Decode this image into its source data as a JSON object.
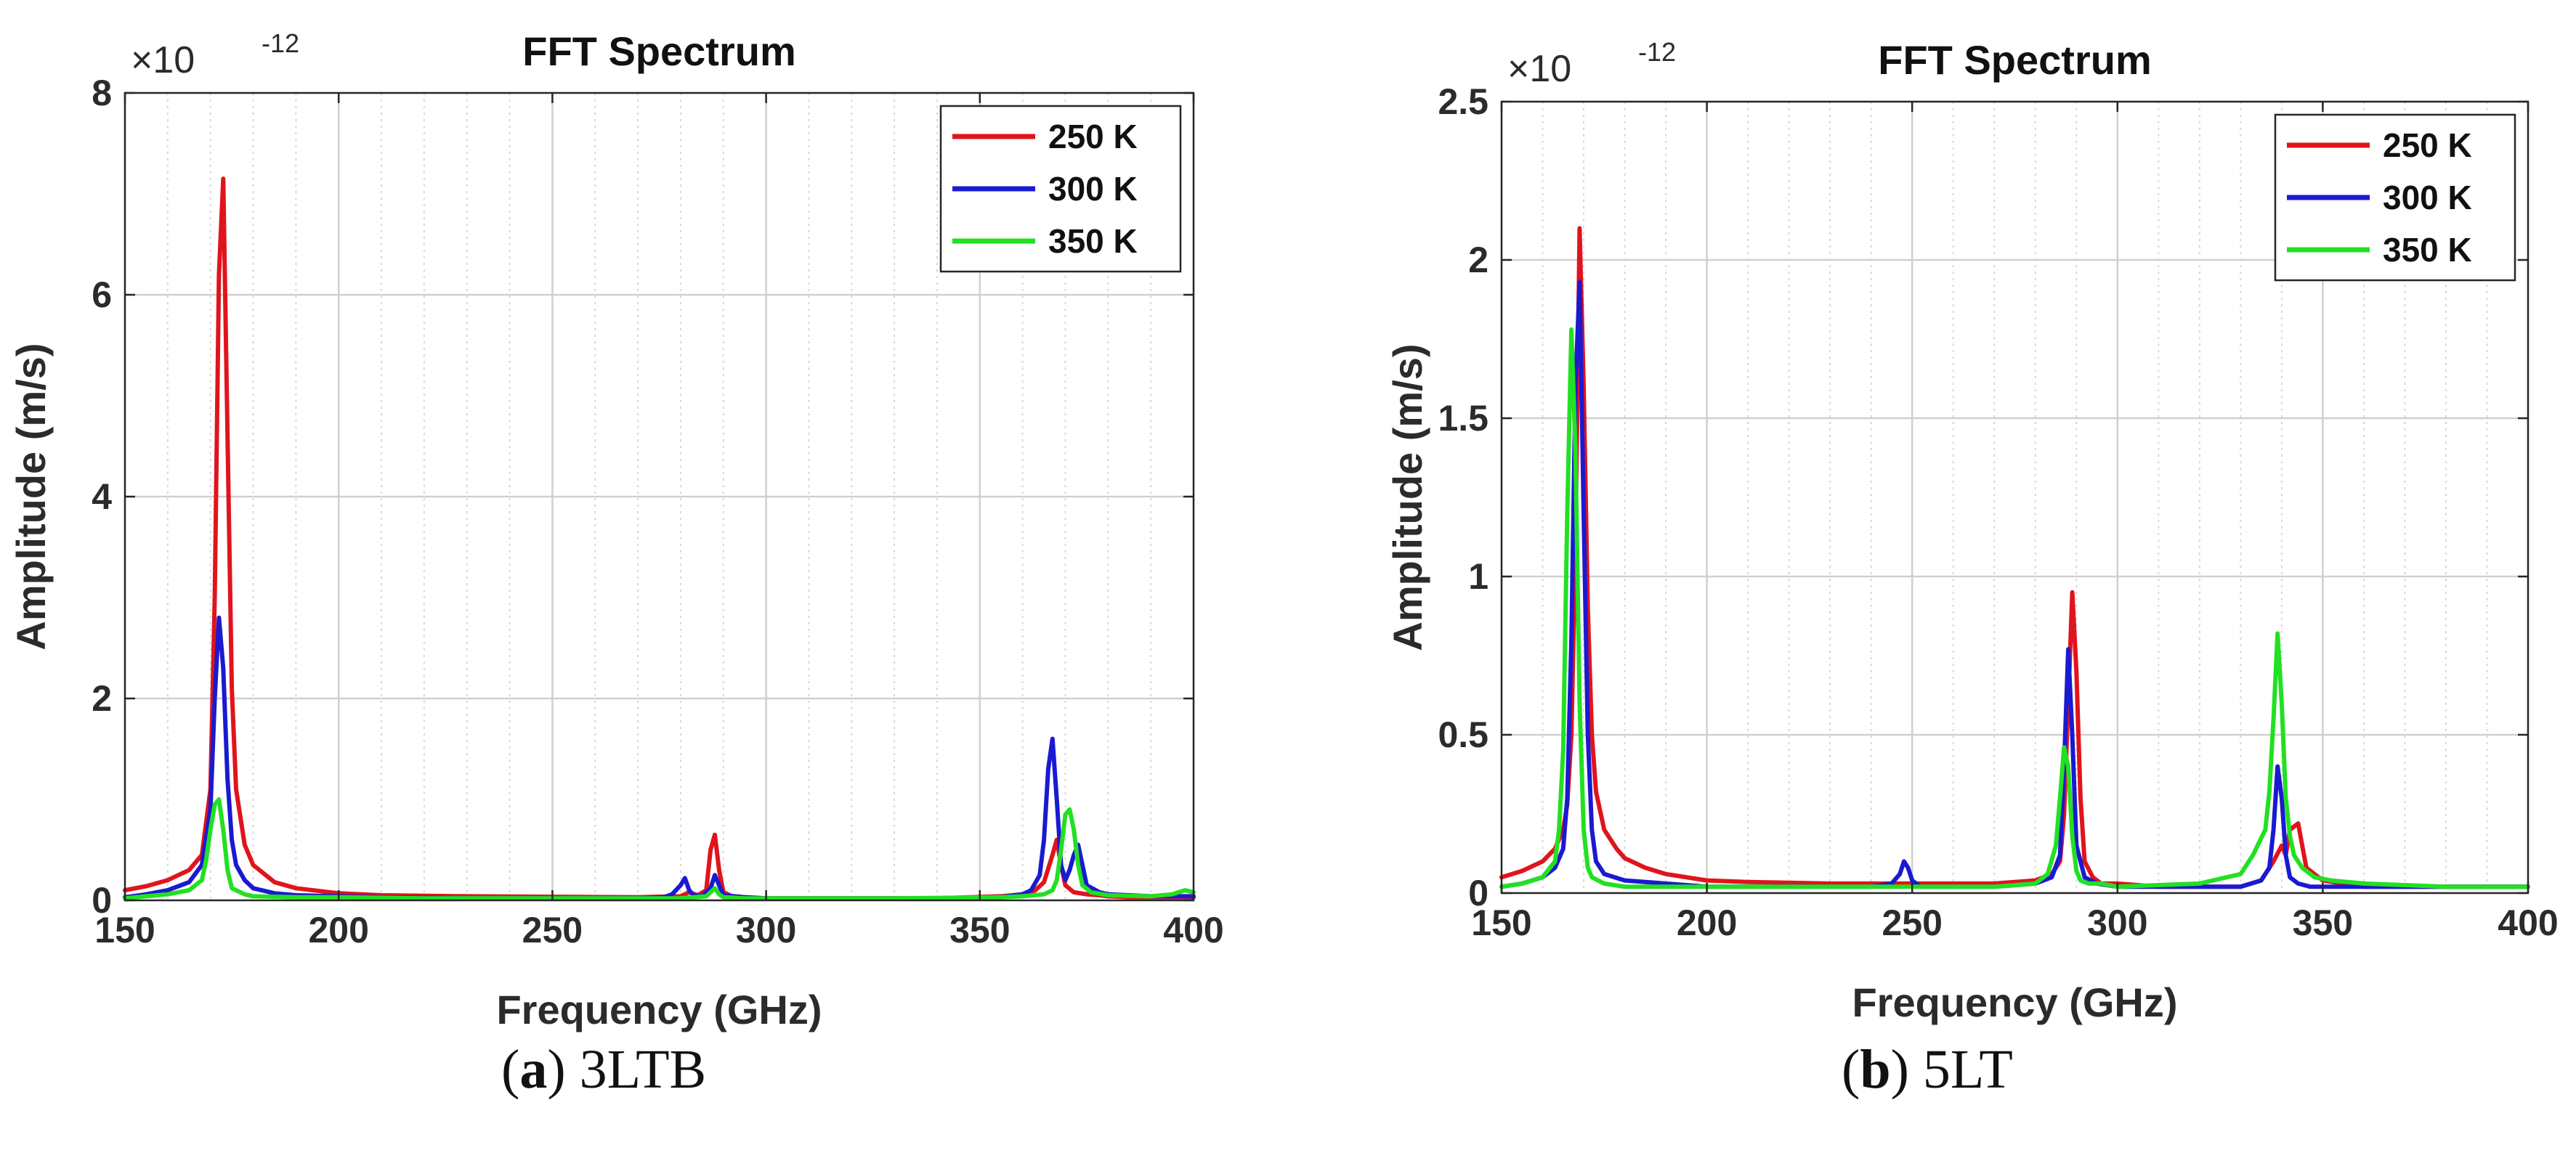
{
  "chart_data": [
    {
      "type": "line",
      "title": "FFT Spectrum",
      "xlabel": "Frequency (GHz)",
      "ylabel": "Amplitude (m/s)",
      "y_exponent_base": "×10",
      "y_exponent": "-12",
      "xlim": [
        150,
        400
      ],
      "ylim": [
        0,
        8
      ],
      "xticks": [
        150,
        200,
        250,
        300,
        350,
        400
      ],
      "yticks": [
        0,
        2,
        4,
        6,
        8
      ],
      "x_minor_grid_step": 10,
      "grid": true,
      "legend_position": "top-right",
      "caption_letter": "a",
      "caption_name": "3LTB",
      "series": [
        {
          "name": "250 K",
          "color": "#e0141c",
          "x": [
            150,
            155,
            160,
            165,
            168,
            170,
            171,
            172,
            173,
            174,
            175,
            176,
            178,
            180,
            185,
            190,
            200,
            210,
            230,
            250,
            270,
            280,
            282,
            284,
            286,
            287,
            288,
            289,
            290,
            292,
            295,
            300,
            320,
            340,
            355,
            360,
            363,
            365,
            367,
            368,
            369,
            370,
            372,
            375,
            378,
            380,
            385,
            390,
            400
          ],
          "y": [
            0.1,
            0.14,
            0.2,
            0.3,
            0.45,
            1.1,
            3.0,
            6.2,
            7.15,
            4.6,
            2.1,
            1.1,
            0.55,
            0.35,
            0.18,
            0.12,
            0.07,
            0.05,
            0.04,
            0.035,
            0.03,
            0.04,
            0.08,
            0.05,
            0.1,
            0.5,
            0.65,
            0.3,
            0.08,
            0.04,
            0.03,
            0.02,
            0.02,
            0.02,
            0.04,
            0.06,
            0.1,
            0.18,
            0.45,
            0.6,
            0.35,
            0.15,
            0.08,
            0.06,
            0.05,
            0.04,
            0.03,
            0.03,
            0.03
          ]
        },
        {
          "name": "300 K",
          "color": "#1a1ad0",
          "x": [
            150,
            155,
            160,
            165,
            168,
            170,
            171,
            172,
            173,
            174,
            175,
            176,
            178,
            180,
            185,
            190,
            200,
            210,
            230,
            250,
            270,
            276,
            278,
            280,
            281,
            282,
            283,
            285,
            287,
            288,
            289,
            290,
            295,
            300,
            320,
            340,
            355,
            360,
            362,
            364,
            365,
            366,
            367,
            368,
            369,
            370,
            371,
            372,
            373,
            374,
            375,
            378,
            380,
            385,
            390,
            400
          ],
          "y": [
            0.03,
            0.06,
            0.1,
            0.18,
            0.35,
            0.9,
            2.0,
            2.8,
            2.3,
            1.2,
            0.6,
            0.35,
            0.2,
            0.12,
            0.07,
            0.05,
            0.04,
            0.03,
            0.02,
            0.02,
            0.02,
            0.03,
            0.06,
            0.15,
            0.22,
            0.1,
            0.05,
            0.04,
            0.12,
            0.25,
            0.15,
            0.05,
            0.03,
            0.02,
            0.02,
            0.02,
            0.03,
            0.06,
            0.1,
            0.25,
            0.6,
            1.3,
            1.6,
            1.0,
            0.35,
            0.2,
            0.3,
            0.45,
            0.55,
            0.35,
            0.15,
            0.08,
            0.06,
            0.05,
            0.04,
            0.04
          ]
        },
        {
          "name": "350 K",
          "color": "#22e022",
          "x": [
            150,
            155,
            160,
            165,
            168,
            169,
            170,
            171,
            172,
            173,
            174,
            175,
            178,
            180,
            190,
            200,
            220,
            250,
            280,
            286,
            287,
            288,
            289,
            290,
            295,
            300,
            330,
            355,
            360,
            365,
            367,
            368,
            369,
            370,
            371,
            372,
            373,
            374,
            376,
            380,
            390,
            395,
            398,
            400
          ],
          "y": [
            0.02,
            0.04,
            0.06,
            0.1,
            0.2,
            0.4,
            0.7,
            0.95,
            1.0,
            0.7,
            0.3,
            0.12,
            0.06,
            0.04,
            0.03,
            0.03,
            0.02,
            0.02,
            0.02,
            0.04,
            0.08,
            0.12,
            0.06,
            0.03,
            0.02,
            0.02,
            0.02,
            0.03,
            0.04,
            0.06,
            0.1,
            0.2,
            0.5,
            0.85,
            0.9,
            0.7,
            0.35,
            0.15,
            0.08,
            0.05,
            0.04,
            0.06,
            0.1,
            0.08
          ]
        }
      ]
    },
    {
      "type": "line",
      "title": "FFT Spectrum",
      "xlabel": "Frequency (GHz)",
      "ylabel": "Amplitude (m/s)",
      "y_exponent_base": "×10",
      "y_exponent": "-12",
      "xlim": [
        150,
        400
      ],
      "ylim": [
        0,
        2.5
      ],
      "xticks": [
        150,
        200,
        250,
        300,
        350,
        400
      ],
      "yticks": [
        0,
        0.5,
        1,
        1.5,
        2,
        2.5
      ],
      "x_minor_grid_step": 10,
      "grid": true,
      "legend_position": "top-right",
      "caption_letter": "b",
      "caption_name": "5LT",
      "series": [
        {
          "name": "250 K",
          "color": "#e0141c",
          "x": [
            150,
            155,
            160,
            163,
            165,
            166,
            167,
            168,
            169,
            170,
            171,
            172,
            173,
            175,
            178,
            180,
            185,
            190,
            200,
            210,
            230,
            245,
            250,
            260,
            270,
            280,
            284,
            286,
            287,
            288,
            289,
            290,
            291,
            292,
            294,
            296,
            300,
            310,
            320,
            330,
            335,
            338,
            340,
            341,
            342,
            344,
            346,
            350,
            360,
            380,
            400
          ],
          "y": [
            0.05,
            0.07,
            0.1,
            0.14,
            0.2,
            0.28,
            0.5,
            1.1,
            2.1,
            1.6,
            0.9,
            0.5,
            0.32,
            0.2,
            0.14,
            0.11,
            0.08,
            0.06,
            0.04,
            0.035,
            0.03,
            0.03,
            0.03,
            0.03,
            0.03,
            0.04,
            0.06,
            0.1,
            0.25,
            0.6,
            0.95,
            0.7,
            0.3,
            0.1,
            0.05,
            0.03,
            0.03,
            0.02,
            0.02,
            0.02,
            0.04,
            0.1,
            0.15,
            0.12,
            0.2,
            0.22,
            0.08,
            0.04,
            0.02,
            0.02,
            0.02
          ]
        },
        {
          "name": "300 K",
          "color": "#1a1ad0",
          "x": [
            150,
            155,
            160,
            163,
            165,
            166,
            167,
            168,
            169,
            170,
            171,
            172,
            173,
            175,
            180,
            190,
            200,
            230,
            240,
            245,
            247,
            248,
            249,
            250,
            252,
            255,
            260,
            270,
            280,
            284,
            286,
            287,
            288,
            289,
            290,
            292,
            295,
            300,
            320,
            330,
            335,
            337,
            338,
            339,
            340,
            341,
            342,
            344,
            347,
            350,
            360,
            380,
            400
          ],
          "y": [
            0.02,
            0.03,
            0.05,
            0.08,
            0.14,
            0.3,
            0.8,
            1.6,
            1.93,
            1.2,
            0.5,
            0.2,
            0.1,
            0.06,
            0.04,
            0.03,
            0.02,
            0.02,
            0.02,
            0.03,
            0.06,
            0.1,
            0.08,
            0.04,
            0.02,
            0.02,
            0.02,
            0.02,
            0.03,
            0.05,
            0.12,
            0.4,
            0.77,
            0.5,
            0.15,
            0.05,
            0.03,
            0.02,
            0.02,
            0.02,
            0.04,
            0.08,
            0.2,
            0.4,
            0.3,
            0.12,
            0.05,
            0.03,
            0.02,
            0.02,
            0.02,
            0.02,
            0.02
          ]
        },
        {
          "name": "350 K",
          "color": "#22e022",
          "x": [
            150,
            155,
            160,
            163,
            164,
            165,
            166,
            167,
            168,
            169,
            170,
            171,
            172,
            175,
            180,
            200,
            230,
            250,
            270,
            280,
            283,
            285,
            286,
            287,
            288,
            289,
            290,
            291,
            293,
            296,
            300,
            320,
            330,
            333,
            336,
            337,
            338,
            339,
            340,
            341,
            342,
            343,
            345,
            348,
            352,
            360,
            380,
            400
          ],
          "y": [
            0.02,
            0.03,
            0.05,
            0.1,
            0.2,
            0.45,
            1.2,
            1.78,
            1.4,
            0.6,
            0.2,
            0.08,
            0.05,
            0.03,
            0.02,
            0.02,
            0.02,
            0.02,
            0.02,
            0.03,
            0.06,
            0.15,
            0.3,
            0.46,
            0.4,
            0.18,
            0.07,
            0.04,
            0.03,
            0.03,
            0.02,
            0.03,
            0.06,
            0.12,
            0.2,
            0.32,
            0.55,
            0.82,
            0.6,
            0.3,
            0.18,
            0.12,
            0.08,
            0.05,
            0.04,
            0.03,
            0.02,
            0.02
          ]
        }
      ]
    }
  ]
}
